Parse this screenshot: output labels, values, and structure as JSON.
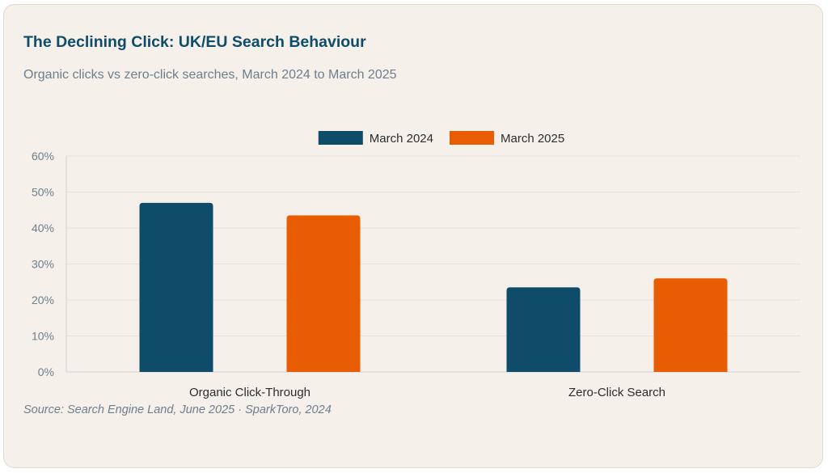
{
  "header": {
    "title": "The Declining Click: UK/EU Search Behaviour",
    "subtitle": "Organic clicks vs zero-click searches, March 2024 to March 2025"
  },
  "footer": {
    "source": "Source: Search Engine Land, June 2025 · SparkToro, 2024"
  },
  "chart_data": {
    "type": "bar",
    "title": "The Declining Click: UK/EU Search Behaviour",
    "subtitle": "Organic clicks vs zero-click searches, March 2024 to March 2025",
    "categories": [
      "Organic Click-Through",
      "Zero-Click Search"
    ],
    "series": [
      {
        "name": "March 2024",
        "color": "#0f4c6a",
        "values": [
          47,
          23.5
        ]
      },
      {
        "name": "March 2025",
        "color": "#e85d04",
        "values": [
          43.5,
          26
        ]
      }
    ],
    "y_ticks": [
      "0%",
      "10%",
      "20%",
      "30%",
      "40%",
      "50%",
      "60%"
    ],
    "ylim": [
      0,
      60
    ],
    "y_unit": "%",
    "grid": true,
    "legend": "top-center"
  }
}
